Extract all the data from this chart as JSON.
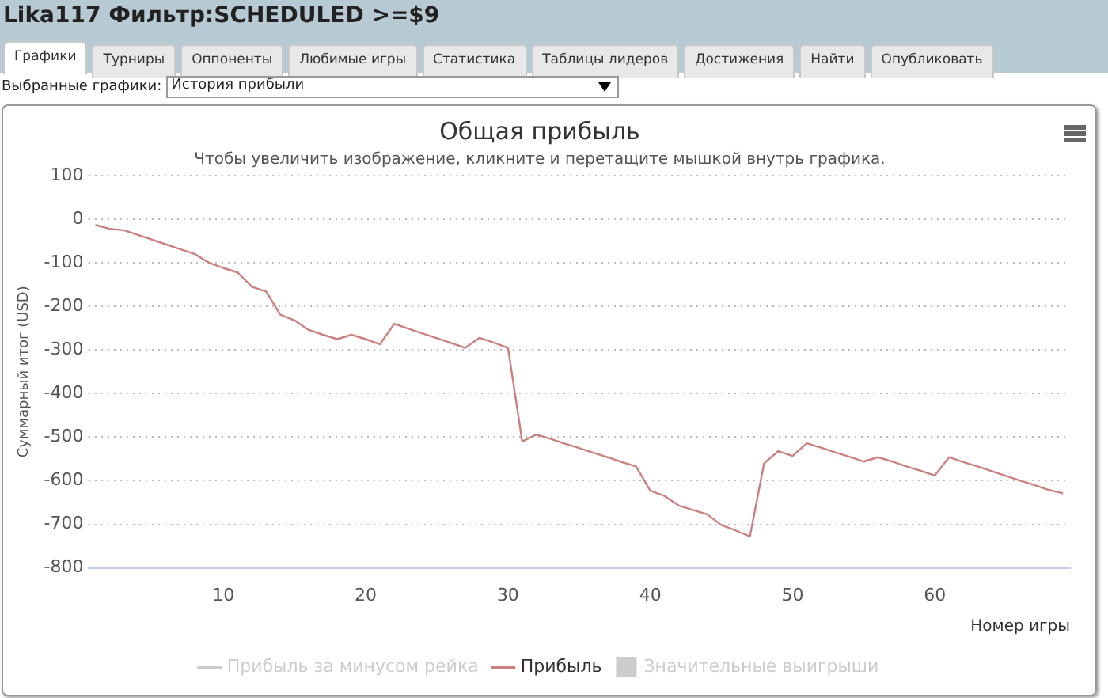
{
  "chart_data": {
    "type": "line",
    "title": "Общая прибыль",
    "subtitle": "Чтобы увеличить изображение, кликните и перетащите мышкой внутрь графика.",
    "xlabel": "Номер игры",
    "ylabel": "Суммарный итог (USD)",
    "annotations": [
      "Lika117 Фильтр:SCHEDULED >=$9",
      "Графики",
      "Турниры",
      "Оппоненты",
      "Любимые игры",
      "Статистика",
      "Таблицы лидеров",
      "Достижения",
      "Найти",
      "Опубликовать",
      "Выбранные графики:",
      "История прибыли"
    ],
    "x": [
      1,
      2,
      3,
      4,
      5,
      6,
      7,
      8,
      9,
      10,
      11,
      12,
      13,
      14,
      15,
      16,
      17,
      18,
      19,
      20,
      21,
      22,
      23,
      24,
      25,
      26,
      27,
      28,
      29,
      30,
      31,
      32,
      33,
      34,
      35,
      36,
      37,
      38,
      39,
      40,
      41,
      42,
      43,
      44,
      45,
      46,
      47,
      48,
      49,
      50,
      51,
      52,
      53,
      54,
      55,
      56,
      57,
      58,
      59,
      60,
      61,
      62,
      63,
      64,
      65,
      66,
      67,
      68,
      69
    ],
    "series": [
      {
        "name": "Прибыль за минусом рейка",
        "color": "#cccccc",
        "values": [
          null,
          null,
          null,
          null,
          null,
          null,
          null,
          null,
          null,
          null,
          null,
          null,
          null,
          null,
          null,
          null,
          null,
          null,
          null,
          null,
          null,
          null,
          null,
          null,
          null,
          null,
          null,
          null,
          null,
          null,
          null,
          null,
          null,
          null,
          null,
          null,
          null,
          null,
          null,
          null,
          null,
          null,
          null,
          null,
          null,
          null,
          null,
          null,
          null,
          null,
          null,
          null,
          null,
          null,
          null,
          null,
          null,
          null,
          null,
          null,
          null,
          null,
          null,
          null,
          null,
          null,
          null,
          null,
          null
        ]
      },
      {
        "name": "Прибыль",
        "color": "#cc8080",
        "values": [
          -13,
          -22,
          -25,
          -36,
          -47,
          -58,
          -69,
          -80,
          -100,
          -112,
          -122,
          -155,
          -166,
          -219,
          -232,
          -254,
          -265,
          -275,
          -265,
          -275,
          -287,
          -240,
          -251,
          -262,
          -273,
          -284,
          -295,
          -272,
          -283,
          -295,
          -510,
          -494,
          -504,
          -515,
          -525,
          -536,
          -546,
          -557,
          -567,
          -623,
          -635,
          -657,
          -667,
          -677,
          -702,
          -714,
          -728,
          -560,
          -532,
          -543,
          -514,
          -524,
          -535,
          -545,
          -556,
          -546,
          -556,
          -567,
          -577,
          -588,
          -546,
          -557,
          -567,
          -578,
          -589,
          -600,
          -610,
          -621,
          -629
        ]
      },
      {
        "name": "Значительные выигрыши",
        "type": "bar",
        "color": "#cccccc",
        "values": [
          null,
          null,
          null,
          null,
          null,
          null,
          null,
          null,
          null,
          null,
          null,
          null,
          null,
          null,
          null,
          null,
          null,
          null,
          null,
          null,
          null,
          null,
          null,
          null,
          null,
          null,
          null,
          null,
          null,
          null,
          null,
          null,
          null,
          null,
          null,
          null,
          null,
          null,
          null,
          null,
          null,
          null,
          null,
          null,
          null,
          null,
          null,
          null,
          null,
          null,
          null,
          null,
          null,
          null,
          null,
          null,
          null,
          null,
          null,
          null,
          null,
          null,
          null,
          null,
          null,
          null,
          null,
          null,
          null
        ]
      }
    ],
    "xlim": [
      0.5,
      69.5
    ],
    "xticks": [
      10,
      20,
      30,
      40,
      50,
      60
    ],
    "ylim": [
      -800,
      100
    ],
    "yticks": [
      -800,
      -700,
      -600,
      -500,
      -400,
      -300,
      -200,
      -100,
      0,
      100
    ],
    "grid": "y",
    "legend": "bottom",
    "line_style": "solid",
    "marker": "none"
  }
}
